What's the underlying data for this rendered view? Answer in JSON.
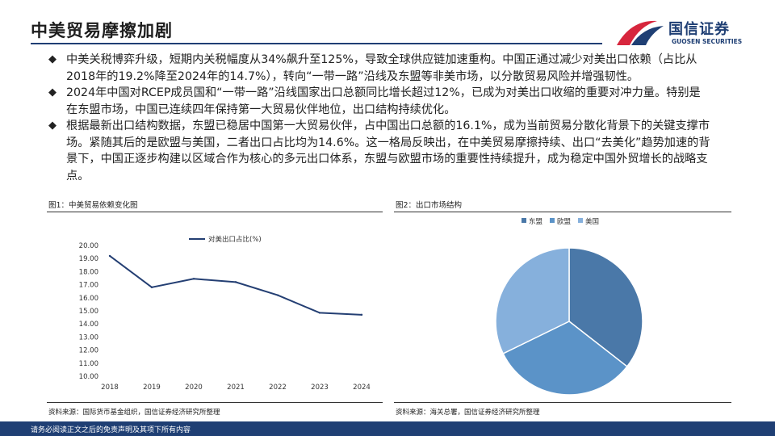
{
  "header": {
    "title": "中美贸易摩擦加剧",
    "logo_cn": "国信证券",
    "logo_en": "GUOSEN SECURITIES"
  },
  "bullets": [
    "中美关税博弈升级，短期内关税幅度从34%飙升至125%，导致全球供应链加速重构。中国正通过减少对美出口依赖（占比从2018年的19.2%降至2024年的14.7%），转向“一带一路”沿线及东盟等非美市场，以分散贸易风险并增强韧性。",
    "2024年中国对RCEP成员国和“一带一路”沿线国家出口总额同比增长超过12%，已成为对美出口收缩的重要对冲力量。特别是在东盟市场，中国已连续四年保持第一大贸易伙伴地位，出口结构持续优化。",
    "根据最新出口结构数据，东盟已稳居中国第一大贸易伙伴，占中国出口总额的16.1%，成为当前贸易分散化背景下的关键支撑市场。紧随其后的是欧盟与美国，二者出口占比均为14.6%。这一格局反映出，在中美贸易摩擦持续、出口“去美化”趋势加速的背景下，中国正逐步构建以区域合作为核心的多元出口体系，东盟与欧盟市场的重要性持续提升，成为稳定中国外贸增长的战略支点。"
  ],
  "fig1": {
    "title": "图1：中美贸易依赖变化图",
    "source": "资料来源：国际货币基金组织，国信证券经济研究所整理"
  },
  "fig2": {
    "title": "图2：出口市场结构",
    "source": "资料来源：海关总署，国信证券经济研究所整理"
  },
  "footer": {
    "disclaimer": "请务必阅读正文之后的免责声明及其项下所有内容"
  },
  "colors": {
    "brand": "#1f3f74",
    "logo_red": "#d7263d",
    "line": "#243f73"
  },
  "chart_data": [
    {
      "type": "line",
      "title": "",
      "xlabel": "",
      "ylabel": "",
      "x": [
        "2018",
        "2019",
        "2020",
        "2021",
        "2022",
        "2023",
        "2024"
      ],
      "series": [
        {
          "name": "对美出口占比(%)",
          "values": [
            19.2,
            16.8,
            17.45,
            17.2,
            16.2,
            14.85,
            14.7
          ],
          "color": "#243f73"
        }
      ],
      "ylim": [
        10,
        20
      ],
      "yticks": [
        "10.00",
        "11.00",
        "12.00",
        "13.00",
        "14.00",
        "15.00",
        "16.00",
        "17.00",
        "18.00",
        "19.00",
        "20.00"
      ],
      "grid": false,
      "legend": "top-left"
    },
    {
      "type": "pie",
      "title": "",
      "categories": [
        "东盟",
        "欧盟",
        "美国"
      ],
      "values": [
        16.1,
        14.6,
        14.6
      ],
      "colors": [
        "#4a78a8",
        "#5b93c8",
        "#86b0dc"
      ],
      "legend": "top"
    }
  ]
}
